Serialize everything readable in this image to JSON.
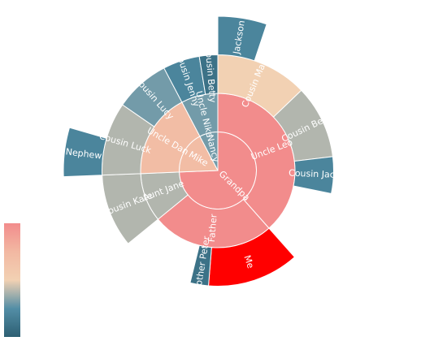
{
  "chart_data": {
    "type": "sunburst",
    "visual_map": {
      "min": 0,
      "max": 10,
      "colors": [
        "#2D5F73",
        "#538EA6",
        "#F2D1B3",
        "#F2B8A2",
        "#F28C8C"
      ]
    },
    "data": [
      {
        "name": "Grandpa",
        "value": 29,
        "children": [
          {
            "name": "Uncle Leo",
            "value": 15,
            "children": [
              {
                "name": "Cousin Mary",
                "value": 5,
                "children": [
                  {
                    "name": "Jackson",
                    "value": 2
                  }
                ]
              },
              {
                "name": "Cousin Ben",
                "value": 4
              },
              {
                "name": "Cousin Jack",
                "value": 2
              }
            ]
          },
          {
            "name": "Father",
            "value": 10,
            "children": [
              {
                "name": "Me",
                "value": 5,
                "color": "#ff0000"
              },
              {
                "name": "Brother Peter",
                "value": 1
              }
            ]
          },
          {
            "name": "Aunt Jane",
            "value": 4,
            "children": [
              {
                "name": "Cousin Kate",
                "value": 4
              }
            ]
          }
        ]
      },
      {
        "name": "Mike",
        "value": 7,
        "children": [
          {
            "name": "Uncle Dan",
            "value": 7,
            "children": [
              {
                "name": "Cousin Luck",
                "value": 4,
                "children": [
                  {
                    "name": "Nephew",
                    "value": 2
                  }
                ]
              },
              {
                "name": "Cousin Lucy",
                "value": 3
              }
            ]
          }
        ]
      },
      {
        "name": "Nancy",
        "value": 3,
        "children": [
          {
            "name": "Uncle Nike",
            "value": 3,
            "children": [
              {
                "name": "Cousin Jenny",
                "value": 2
              },
              {
                "name": "Cousin Betty",
                "value": 1
              }
            ]
          }
        ]
      }
    ]
  }
}
